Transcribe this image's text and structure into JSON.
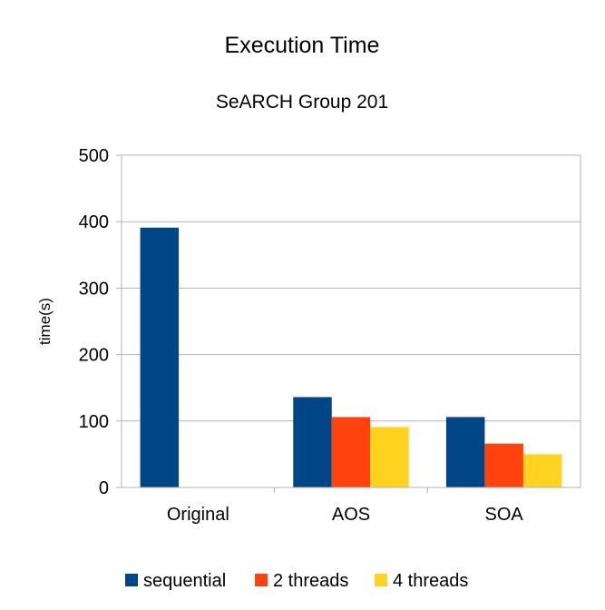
{
  "chart_data": {
    "type": "bar",
    "title": "Execution Time",
    "subtitle": "SeARCH Group 201",
    "xlabel": "",
    "ylabel": "time(s)",
    "ylim": [
      0,
      500
    ],
    "yticks": [
      0,
      100,
      200,
      300,
      400,
      500
    ],
    "grid": true,
    "legend_position": "bottom",
    "categories": [
      "Original",
      "AOS",
      "SOA"
    ],
    "series": [
      {
        "name": "sequential",
        "color": "#004586",
        "values": [
          391,
          136,
          106
        ]
      },
      {
        "name": "2 threads",
        "color": "#ff420e",
        "values": [
          0,
          106,
          66
        ]
      },
      {
        "name": "4 threads",
        "color": "#ffd320",
        "values": [
          0,
          91,
          50
        ]
      }
    ]
  }
}
